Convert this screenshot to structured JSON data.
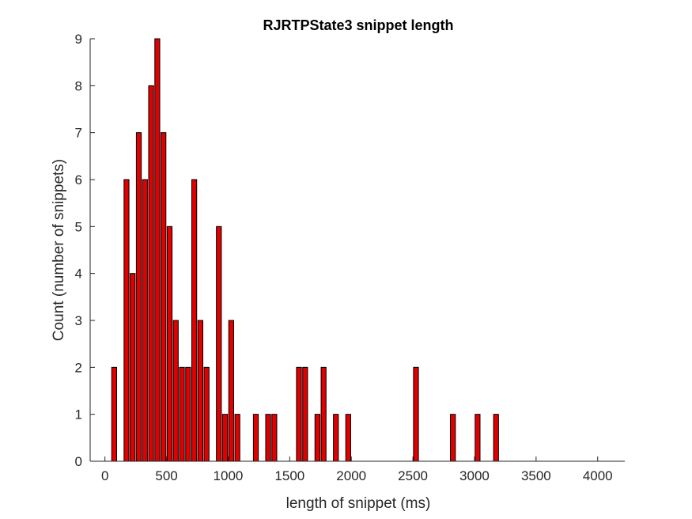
{
  "chart_data": {
    "type": "bar",
    "title": "RJRTPState3 snippet length",
    "xlabel": "length of snippet (ms)",
    "ylabel": "Count (number of snippets)",
    "xlim": [
      -120,
      4220
    ],
    "ylim": [
      0,
      9
    ],
    "xticks": [
      0,
      500,
      1000,
      1500,
      2000,
      2500,
      3000,
      3500,
      4000
    ],
    "yticks": [
      0,
      1,
      2,
      3,
      4,
      5,
      6,
      7,
      8,
      9
    ],
    "bin_width": 50,
    "bar_width": 40,
    "grid": false,
    "colors": {
      "bar_fill": "#e00000",
      "bar_edge": "#000000",
      "axis": "#262626"
    },
    "points": [
      {
        "x": 75,
        "y": 2
      },
      {
        "x": 175,
        "y": 6
      },
      {
        "x": 225,
        "y": 4
      },
      {
        "x": 275,
        "y": 7
      },
      {
        "x": 325,
        "y": 6
      },
      {
        "x": 375,
        "y": 8
      },
      {
        "x": 425,
        "y": 9
      },
      {
        "x": 475,
        "y": 7
      },
      {
        "x": 525,
        "y": 5
      },
      {
        "x": 575,
        "y": 3
      },
      {
        "x": 625,
        "y": 2
      },
      {
        "x": 675,
        "y": 2
      },
      {
        "x": 725,
        "y": 6
      },
      {
        "x": 775,
        "y": 3
      },
      {
        "x": 825,
        "y": 2
      },
      {
        "x": 925,
        "y": 5
      },
      {
        "x": 975,
        "y": 1
      },
      {
        "x": 1025,
        "y": 3
      },
      {
        "x": 1075,
        "y": 1
      },
      {
        "x": 1225,
        "y": 1
      },
      {
        "x": 1325,
        "y": 1
      },
      {
        "x": 1375,
        "y": 1
      },
      {
        "x": 1575,
        "y": 2
      },
      {
        "x": 1625,
        "y": 2
      },
      {
        "x": 1725,
        "y": 1
      },
      {
        "x": 1775,
        "y": 2
      },
      {
        "x": 1875,
        "y": 1
      },
      {
        "x": 1975,
        "y": 1
      },
      {
        "x": 2525,
        "y": 2
      },
      {
        "x": 2825,
        "y": 1
      },
      {
        "x": 3025,
        "y": 1
      },
      {
        "x": 3175,
        "y": 1
      }
    ]
  }
}
